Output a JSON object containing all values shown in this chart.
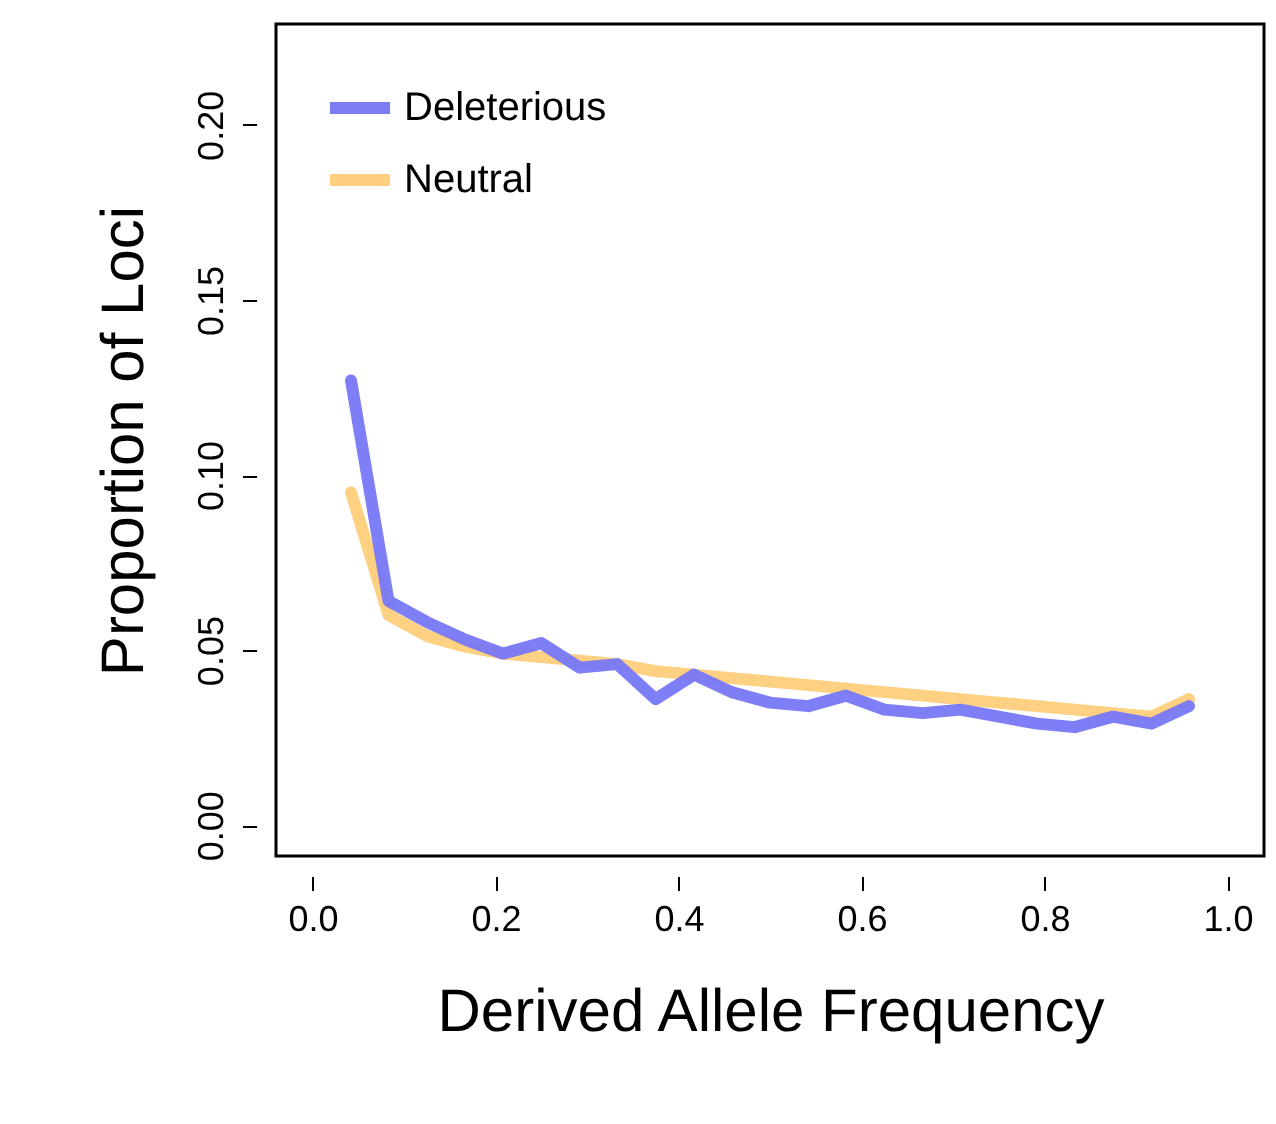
{
  "chart_data": {
    "type": "line",
    "xlabel": "Derived Allele Frequency",
    "ylabel": "Proportion of Loci",
    "x": [
      0.042,
      0.083,
      0.125,
      0.167,
      0.208,
      0.25,
      0.292,
      0.333,
      0.375,
      0.417,
      0.458,
      0.5,
      0.542,
      0.583,
      0.625,
      0.667,
      0.708,
      0.75,
      0.792,
      0.833,
      0.875,
      0.917,
      0.958
    ],
    "series": [
      {
        "name": "Deleterious",
        "color": "#7777f5",
        "values": [
          0.127,
          0.064,
          0.058,
          0.053,
          0.049,
          0.052,
          0.045,
          0.046,
          0.036,
          0.043,
          0.038,
          0.035,
          0.034,
          0.037,
          0.033,
          0.032,
          0.033,
          0.031,
          0.029,
          0.028,
          0.031,
          0.029,
          0.034
        ]
      },
      {
        "name": "Neutral",
        "color": "#fecd7a",
        "values": [
          0.095,
          0.06,
          0.054,
          0.051,
          0.049,
          0.048,
          0.047,
          0.046,
          0.044,
          0.043,
          0.042,
          0.041,
          0.04,
          0.039,
          0.038,
          0.037,
          0.036,
          0.035,
          0.034,
          0.033,
          0.032,
          0.031,
          0.036
        ]
      }
    ],
    "xlim": [
      -0.04,
      1.04
    ],
    "ylim": [
      -0.0088,
      0.2288
    ],
    "xticks": [
      {
        "value": 0,
        "label": "0.0"
      },
      {
        "value": 0.2,
        "label": "0.2"
      },
      {
        "value": 0.4,
        "label": "0.4"
      },
      {
        "value": 0.6,
        "label": "0.6"
      },
      {
        "value": 0.8,
        "label": "0.8"
      },
      {
        "value": 1,
        "label": "1.0"
      }
    ],
    "yticks": [
      {
        "value": 0,
        "label": "0.00"
      },
      {
        "value": 0.05,
        "label": "0.05"
      },
      {
        "value": 0.1,
        "label": "0.10"
      },
      {
        "value": 0.15,
        "label": "0.15"
      },
      {
        "value": 0.2,
        "label": "0.20"
      }
    ],
    "legend": "top left",
    "grid": false,
    "marker": "none",
    "line_style": "solid"
  }
}
